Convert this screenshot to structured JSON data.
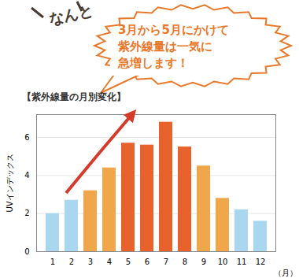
{
  "chart_data": {
    "type": "bar",
    "title": "【紫外線量の月別変化】",
    "annotations": [
      "なんと",
      "3月から5月にかけて\n紫外線量は一気に\n急増します！"
    ],
    "x_label": "（月）",
    "y_label": "UVインデックス",
    "categories": [
      "1",
      "2",
      "3",
      "4",
      "5",
      "6",
      "7",
      "8",
      "9",
      "10",
      "11",
      "12"
    ],
    "values": [
      2.0,
      2.7,
      3.2,
      4.4,
      5.7,
      5.6,
      6.8,
      5.5,
      4.5,
      2.8,
      2.2,
      1.6
    ],
    "colors": [
      "#a9d7f0",
      "#a9d7f0",
      "#f0a64a",
      "#f0a64a",
      "#e8632b",
      "#e8632b",
      "#e8632b",
      "#e8632b",
      "#f0a64a",
      "#f0a64a",
      "#a9d7f0",
      "#a9d7f0"
    ],
    "ylim": [
      0,
      7.2
    ],
    "yticks": [
      0,
      2,
      4,
      6
    ],
    "grid": true
  }
}
